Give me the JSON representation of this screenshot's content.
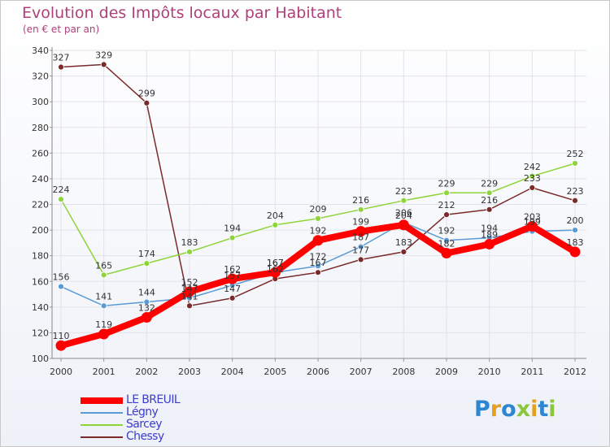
{
  "chart_data": {
    "type": "line",
    "title": "Evolution des Impôts locaux par Habitant",
    "subtitle": "(en € et par an)",
    "xlabel": "",
    "ylabel": "",
    "ylim": [
      100,
      340
    ],
    "yticks": [
      100,
      120,
      140,
      160,
      180,
      200,
      220,
      240,
      260,
      280,
      300,
      320,
      340
    ],
    "x": [
      "2000",
      "2001",
      "2002",
      "2003",
      "2004",
      "2005",
      "2006",
      "2007",
      "2008",
      "2009",
      "2010",
      "2011",
      "2012"
    ],
    "grid": true,
    "legend_position": "bottom-left",
    "series": [
      {
        "name": "LE BREUIL",
        "color": "#ff0000",
        "values": [
          110,
          119,
          132,
          152,
          162,
          167,
          192,
          199,
          204,
          182,
          189,
          203,
          183
        ]
      },
      {
        "name": "Légny",
        "color": "#5b9bd5",
        "values": [
          156,
          141,
          144,
          147,
          157,
          167,
          172,
          187,
          206,
          192,
          194,
          199,
          200
        ]
      },
      {
        "name": "Sarcey",
        "color": "#8fd43a",
        "values": [
          224,
          165,
          174,
          183,
          194,
          204,
          209,
          216,
          223,
          229,
          229,
          242,
          252
        ]
      },
      {
        "name": "Chessy",
        "color": "#7a2a2a",
        "values": [
          327,
          329,
          299,
          141,
          147,
          162,
          167,
          177,
          183,
          212,
          216,
          233,
          223
        ]
      }
    ]
  },
  "brand": {
    "text": "Proxiti",
    "colors": [
      "#2f86d0",
      "#e3a021",
      "#2f86d0",
      "#8cc63f",
      "#e3a021",
      "#2f86d0",
      "#8cc63f"
    ]
  }
}
